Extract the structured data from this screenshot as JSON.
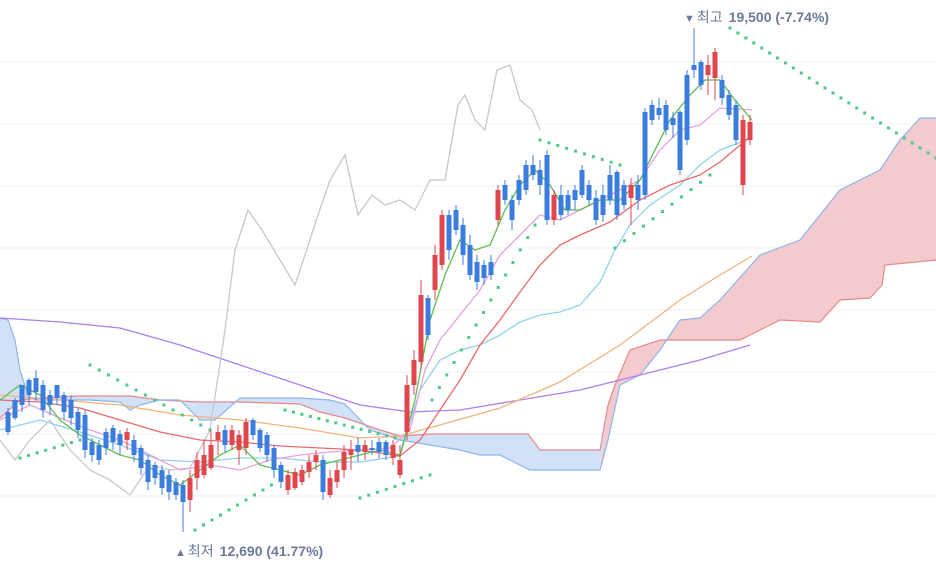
{
  "chart_data": {
    "type": "candlestick",
    "grid": true,
    "ylim": [
      12000,
      21000
    ],
    "colors": {
      "up": "#e0474c",
      "down": "#3b7ddd",
      "ma5": "#5cbf4d",
      "ma20": "#e8a0e0",
      "ma60": "#8fd3ea",
      "ma120": "#e86a6a",
      "ma240": "#f0b47a",
      "ma480": "#b07ef0",
      "lagging_span": "#c8c8c8",
      "parabolic_sar": "#4cc98a",
      "cloud_bull": "#f6c9c9",
      "cloud_bear": "#c9dcf6",
      "span_a": "#e88888",
      "span_b": "#8fb4ea"
    },
    "high_marker": {
      "arrow": "▼",
      "label": "최고",
      "value": "19,500",
      "pct": "(-7.74%)",
      "color": "#6b7a99"
    },
    "low_marker": {
      "arrow": "▲",
      "label": "최저",
      "value": "12,690",
      "pct": "(41.77%)",
      "color": "#6b7a99"
    }
  }
}
